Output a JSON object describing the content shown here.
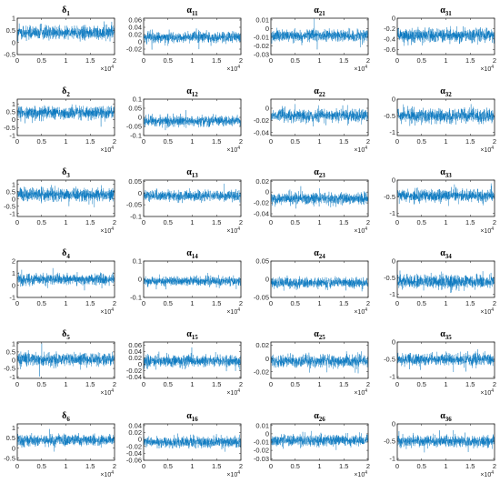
{
  "chart_data": [
    {
      "type": "line",
      "title_symbol": "δ",
      "title_sub": "1",
      "ylim": [
        -0.5,
        1
      ],
      "yticks": [
        "1",
        "0.5",
        "0",
        "-0.5"
      ],
      "ytick_values": [
        1,
        0.5,
        0,
        -0.5
      ],
      "series_mean": 0.4,
      "series_spread": 0.25,
      "xlim": [
        0,
        2
      ],
      "xticks": [
        "0",
        "0.5",
        "1",
        "1.5",
        "2"
      ],
      "x_exponent_base": "×10",
      "x_exponent": "4"
    },
    {
      "type": "line",
      "title_symbol": "α",
      "title_sub": "11",
      "ylim": [
        -0.035,
        0.065
      ],
      "yticks": [
        "0.06",
        "0.04",
        "0.02",
        "0",
        "-0.02"
      ],
      "ytick_values": [
        0.06,
        0.04,
        0.02,
        0,
        -0.02
      ],
      "series_mean": 0.013,
      "series_spread": 0.013,
      "xlim": [
        0,
        2
      ],
      "xticks": [
        "0",
        "0.5",
        "1",
        "1.5",
        "2"
      ],
      "x_exponent_base": "×10",
      "x_exponent": "4"
    },
    {
      "type": "line",
      "title_symbol": "α",
      "title_sub": "21",
      "ylim": [
        -0.03,
        0.012
      ],
      "yticks": [
        "0.01",
        "0",
        "-0.01",
        "-0.02",
        "-0.03"
      ],
      "ytick_values": [
        0.01,
        0,
        -0.01,
        -0.02,
        -0.03
      ],
      "series_mean": -0.008,
      "series_spread": 0.006,
      "xlim": [
        0,
        2
      ],
      "xticks": [
        "0",
        "0.5",
        "1",
        "1.5",
        "2"
      ],
      "x_exponent_base": "×10",
      "x_exponent": "4"
    },
    {
      "type": "line",
      "title_symbol": "α",
      "title_sub": "31",
      "ylim": [
        -0.7,
        0
      ],
      "yticks": [
        "0",
        "-0.2",
        "-0.4",
        "-0.6"
      ],
      "ytick_values": [
        0,
        -0.2,
        -0.4,
        -0.6
      ],
      "series_mean": -0.33,
      "series_spread": 0.12,
      "xlim": [
        0,
        2
      ],
      "xticks": [
        "0",
        "0.5",
        "1",
        "1.5",
        "2"
      ],
      "x_exponent_base": "×10",
      "x_exponent": "4"
    },
    {
      "type": "line",
      "title_symbol": "δ",
      "title_sub": "2",
      "ylim": [
        -1,
        1.3
      ],
      "yticks": [
        "1",
        "0.5",
        "0",
        "-0.5",
        "-1"
      ],
      "ytick_values": [
        1,
        0.5,
        0,
        -0.5,
        -1
      ],
      "series_mean": 0.45,
      "series_spread": 0.35,
      "xlim": [
        0,
        2
      ],
      "xticks": [
        "0",
        "0.5",
        "1",
        "1.5",
        "2"
      ],
      "x_exponent_base": "×10",
      "x_exponent": "4"
    },
    {
      "type": "line",
      "title_symbol": "α",
      "title_sub": "12",
      "ylim": [
        -0.1,
        0.1
      ],
      "yticks": [
        "0.1",
        "0.05",
        "0",
        "-0.05",
        "-0.1"
      ],
      "ytick_values": [
        0.1,
        0.05,
        0,
        -0.05,
        -0.1
      ],
      "series_mean": -0.02,
      "series_spread": 0.025,
      "xlim": [
        0,
        2
      ],
      "xticks": [
        "0",
        "0.5",
        "1",
        "1.5",
        "2"
      ],
      "x_exponent_base": "×10",
      "x_exponent": "4"
    },
    {
      "type": "line",
      "title_symbol": "α",
      "title_sub": "22",
      "ylim": [
        -0.045,
        0.015
      ],
      "yticks": [
        "0",
        "-0.02",
        "-0.04"
      ],
      "ytick_values": [
        0,
        -0.02,
        -0.04
      ],
      "series_mean": -0.012,
      "series_spread": 0.009,
      "xlim": [
        0,
        2
      ],
      "xticks": [
        "0",
        "0.5",
        "1",
        "1.5",
        "2"
      ],
      "x_exponent_base": "×10",
      "x_exponent": "4"
    },
    {
      "type": "line",
      "title_symbol": "α",
      "title_sub": "32",
      "ylim": [
        -1.1,
        0
      ],
      "yticks": [
        "0",
        "-0.5",
        "-1"
      ],
      "ytick_values": [
        0,
        -0.5,
        -1
      ],
      "series_mean": -0.5,
      "series_spread": 0.18,
      "xlim": [
        0,
        2
      ],
      "xticks": [
        "0",
        "0.5",
        "1",
        "1.5",
        "2"
      ],
      "x_exponent_base": "×10",
      "x_exponent": "4"
    },
    {
      "type": "line",
      "title_symbol": "δ",
      "title_sub": "3",
      "ylim": [
        -1.2,
        1.3
      ],
      "yticks": [
        "1",
        "0.5",
        "0",
        "-0.5",
        "-1"
      ],
      "ytick_values": [
        1,
        0.5,
        0,
        -0.5,
        -1
      ],
      "series_mean": 0.3,
      "series_spread": 0.4,
      "xlim": [
        0,
        2
      ],
      "xticks": [
        "0",
        "0.5",
        "1",
        "1.5",
        "2"
      ],
      "x_exponent_base": "×10",
      "x_exponent": "4"
    },
    {
      "type": "line",
      "title_symbol": "α",
      "title_sub": "13",
      "ylim": [
        -0.1,
        0.055
      ],
      "yticks": [
        "0.05",
        "0",
        "-0.05",
        "-0.1"
      ],
      "ytick_values": [
        0.05,
        0,
        -0.05,
        -0.1
      ],
      "series_mean": -0.012,
      "series_spread": 0.02,
      "xlim": [
        0,
        2
      ],
      "xticks": [
        "0",
        "0.5",
        "1",
        "1.5",
        "2"
      ],
      "x_exponent_base": "×10",
      "x_exponent": "4"
    },
    {
      "type": "line",
      "title_symbol": "α",
      "title_sub": "23",
      "ylim": [
        -0.045,
        0.022
      ],
      "yticks": [
        "0.02",
        "0",
        "-0.02",
        "-0.04"
      ],
      "ytick_values": [
        0.02,
        0,
        -0.02,
        -0.04
      ],
      "series_mean": -0.012,
      "series_spread": 0.009,
      "xlim": [
        0,
        2
      ],
      "xticks": [
        "0",
        "0.5",
        "1",
        "1.5",
        "2"
      ],
      "x_exponent_base": "×10",
      "x_exponent": "4"
    },
    {
      "type": "line",
      "title_symbol": "α",
      "title_sub": "33",
      "ylim": [
        -1.1,
        0
      ],
      "yticks": [
        "0",
        "-0.5",
        "-1"
      ],
      "ytick_values": [
        0,
        -0.5,
        -1
      ],
      "series_mean": -0.48,
      "series_spread": 0.17,
      "xlim": [
        0,
        2
      ],
      "xticks": [
        "0",
        "0.5",
        "1",
        "1.5",
        "2"
      ],
      "x_exponent_base": "×10",
      "x_exponent": "4"
    },
    {
      "type": "line",
      "title_symbol": "δ",
      "title_sub": "4",
      "ylim": [
        -1,
        2
      ],
      "yticks": [
        "2",
        "1",
        "0",
        "-1"
      ],
      "ytick_values": [
        2,
        1,
        0,
        -1
      ],
      "series_mean": 0.5,
      "series_spread": 0.4,
      "xlim": [
        0,
        2
      ],
      "xticks": [
        "0",
        "0.5",
        "1",
        "1.5",
        "2"
      ],
      "x_exponent_base": "×10",
      "x_exponent": "4"
    },
    {
      "type": "line",
      "title_symbol": "α",
      "title_sub": "14",
      "ylim": [
        -0.1,
        0.1
      ],
      "yticks": [
        "0.1",
        "0",
        "-0.1"
      ],
      "ytick_values": [
        0.1,
        0,
        -0.1
      ],
      "series_mean": -0.01,
      "series_spread": 0.022,
      "xlim": [
        0,
        2
      ],
      "xticks": [
        "0",
        "0.5",
        "1",
        "1.5",
        "2"
      ],
      "x_exponent_base": "×10",
      "x_exponent": "4"
    },
    {
      "type": "line",
      "title_symbol": "α",
      "title_sub": "24",
      "ylim": [
        -0.05,
        0.05
      ],
      "yticks": [
        "0.05",
        "0",
        "-0.05"
      ],
      "ytick_values": [
        0.05,
        0,
        -0.05
      ],
      "series_mean": -0.01,
      "series_spread": 0.013,
      "xlim": [
        0,
        2
      ],
      "xticks": [
        "0",
        "0.5",
        "1",
        "1.5",
        "2"
      ],
      "x_exponent_base": "×10",
      "x_exponent": "4"
    },
    {
      "type": "line",
      "title_symbol": "α",
      "title_sub": "34",
      "ylim": [
        -1.1,
        0
      ],
      "yticks": [
        "0",
        "-0.5",
        "-1"
      ],
      "ytick_values": [
        0,
        -0.5,
        -1
      ],
      "series_mean": -0.62,
      "series_spread": 0.18,
      "xlim": [
        0,
        2
      ],
      "xticks": [
        "0",
        "0.5",
        "1",
        "1.5",
        "2"
      ],
      "x_exponent_base": "×10",
      "x_exponent": "4"
    },
    {
      "type": "line",
      "title_symbol": "δ",
      "title_sub": "5",
      "ylim": [
        -1.1,
        1.1
      ],
      "yticks": [
        "1",
        "0.5",
        "0",
        "-0.5",
        "-1"
      ],
      "ytick_values": [
        1,
        0.5,
        0,
        -0.5,
        -1
      ],
      "series_mean": 0.05,
      "series_spread": 0.35,
      "xlim": [
        0,
        2
      ],
      "xticks": [
        "0",
        "0.5",
        "1",
        "1.5",
        "2"
      ],
      "x_exponent_base": "×10",
      "x_exponent": "4"
    },
    {
      "type": "line",
      "title_symbol": "α",
      "title_sub": "15",
      "ylim": [
        -0.045,
        0.07
      ],
      "yticks": [
        "0.06",
        "0.04",
        "0.02",
        "0",
        "-0.02",
        "-0.04"
      ],
      "ytick_values": [
        0.06,
        0.04,
        0.02,
        0,
        -0.02,
        -0.04
      ],
      "series_mean": 0.01,
      "series_spread": 0.016,
      "xlim": [
        0,
        2
      ],
      "xticks": [
        "0",
        "0.5",
        "1",
        "1.5",
        "2"
      ],
      "x_exponent_base": "×10",
      "x_exponent": "4"
    },
    {
      "type": "line",
      "title_symbol": "α",
      "title_sub": "25",
      "ylim": [
        -0.03,
        0.025
      ],
      "yticks": [
        "0.02",
        "0",
        "-0.02"
      ],
      "ytick_values": [
        0.02,
        0,
        -0.02
      ],
      "series_mean": -0.004,
      "series_spread": 0.008,
      "xlim": [
        0,
        2
      ],
      "xticks": [
        "0",
        "0.5",
        "1",
        "1.5",
        "2"
      ],
      "x_exponent_base": "×10",
      "x_exponent": "4"
    },
    {
      "type": "line",
      "title_symbol": "α",
      "title_sub": "35",
      "ylim": [
        -1.05,
        0
      ],
      "yticks": [
        "0",
        "-0.5",
        "-1"
      ],
      "ytick_values": [
        0,
        -0.5,
        -1
      ],
      "series_mean": -0.5,
      "series_spread": 0.15,
      "xlim": [
        0,
        2
      ],
      "xticks": [
        "0",
        "0.5",
        "1",
        "1.5",
        "2"
      ],
      "x_exponent_base": "×10",
      "x_exponent": "4"
    },
    {
      "type": "line",
      "title_symbol": "δ",
      "title_sub": "6",
      "ylim": [
        -0.6,
        1.2
      ],
      "yticks": [
        "1",
        "0.5",
        "0",
        "-0.5"
      ],
      "ytick_values": [
        1,
        0.5,
        0,
        -0.5
      ],
      "series_mean": 0.4,
      "series_spread": 0.25,
      "xlim": [
        0,
        2
      ],
      "xticks": [
        "0",
        "0.5",
        "1",
        "1.5",
        "2"
      ],
      "x_exponent_base": "×10",
      "x_exponent": "4"
    },
    {
      "type": "line",
      "title_symbol": "α",
      "title_sub": "16",
      "ylim": [
        -0.06,
        0.045
      ],
      "yticks": [
        "0.04",
        "0.02",
        "0",
        "-0.02",
        "-0.04",
        "-0.06"
      ],
      "ytick_values": [
        0.04,
        0.02,
        0,
        -0.02,
        -0.04,
        -0.06
      ],
      "series_mean": -0.008,
      "series_spread": 0.014,
      "xlim": [
        0,
        2
      ],
      "xticks": [
        "0",
        "0.5",
        "1",
        "1.5",
        "2"
      ],
      "x_exponent_base": "×10",
      "x_exponent": "4"
    },
    {
      "type": "line",
      "title_symbol": "α",
      "title_sub": "26",
      "ylim": [
        -0.032,
        0.012
      ],
      "yticks": [
        "0.01",
        "0",
        "-0.01",
        "-0.02",
        "-0.03"
      ],
      "ytick_values": [
        0.01,
        0,
        -0.01,
        -0.02,
        -0.03
      ],
      "series_mean": -0.008,
      "series_spread": 0.006,
      "xlim": [
        0,
        2
      ],
      "xticks": [
        "0",
        "0.5",
        "1",
        "1.5",
        "2"
      ],
      "x_exponent_base": "×10",
      "x_exponent": "4"
    },
    {
      "type": "line",
      "title_symbol": "α",
      "title_sub": "36",
      "ylim": [
        -1.05,
        0
      ],
      "yticks": [
        "0",
        "-0.5",
        "-1"
      ],
      "ytick_values": [
        0,
        -0.5,
        -1
      ],
      "series_mean": -0.5,
      "series_spread": 0.14,
      "xlim": [
        0,
        2
      ],
      "xticks": [
        "0",
        "0.5",
        "1",
        "1.5",
        "2"
      ],
      "x_exponent_base": "×10",
      "x_exponent": "4"
    }
  ]
}
